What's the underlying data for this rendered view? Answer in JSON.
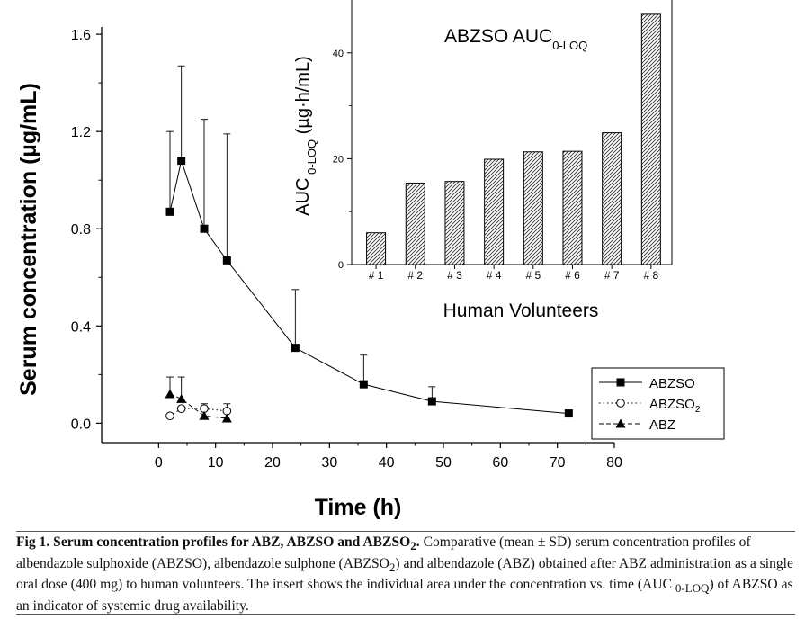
{
  "chart_data": [
    {
      "type": "line",
      "xlabel": "Time (h)",
      "ylabel": "Serum concentration (µg/mL)",
      "xlim": [
        -10,
        80
      ],
      "ylim": [
        -0.08,
        1.63
      ],
      "x_ticks": [
        0,
        10,
        20,
        30,
        40,
        50,
        60,
        70,
        80
      ],
      "y_ticks": [
        0.0,
        0.4,
        0.8,
        1.2,
        1.6
      ],
      "grid": false,
      "legend_position": "bottom-right",
      "series": [
        {
          "name": "ABZSO",
          "marker": "filled-square",
          "line": "solid",
          "points": [
            {
              "x": 2,
              "y": 0.87,
              "sd": 0.33
            },
            {
              "x": 4,
              "y": 1.08,
              "sd": 0.39
            },
            {
              "x": 8,
              "y": 0.8,
              "sd": 0.45
            },
            {
              "x": 12,
              "y": 0.67,
              "sd": 0.52
            },
            {
              "x": 24,
              "y": 0.31,
              "sd": 0.24
            },
            {
              "x": 36,
              "y": 0.16,
              "sd": 0.12
            },
            {
              "x": 48,
              "y": 0.09,
              "sd": 0.06
            },
            {
              "x": 72,
              "y": 0.04,
              "sd": 0.01
            }
          ]
        },
        {
          "name": "ABZSO",
          "name_sub": "2",
          "marker": "open-circle",
          "line": "dotted",
          "points": [
            {
              "x": 2,
              "y": 0.03,
              "sd": 0.0
            },
            {
              "x": 4,
              "y": 0.06,
              "sd": 0.0
            },
            {
              "x": 8,
              "y": 0.06,
              "sd": 0.02
            },
            {
              "x": 12,
              "y": 0.05,
              "sd": 0.03
            }
          ]
        },
        {
          "name": "ABZ",
          "marker": "filled-triangle",
          "line": "dashed",
          "points": [
            {
              "x": 2,
              "y": 0.12,
              "sd": 0.07
            },
            {
              "x": 4,
              "y": 0.1,
              "sd": 0.09
            },
            {
              "x": 8,
              "y": 0.03,
              "sd": 0.0
            },
            {
              "x": 12,
              "y": 0.02,
              "sd": 0.0
            }
          ]
        }
      ]
    },
    {
      "type": "bar",
      "title": "ABZSO AUC",
      "title_sub": "0-LOQ",
      "xlabel": "Human Volunteers",
      "ylabel": "AUC",
      "ylabel_sub": "0-LOQ",
      "ylabel_unit": "(µg·h/mL)",
      "categories": [
        "# 1",
        "# 2",
        "# 3",
        "# 4",
        "# 5",
        "# 6",
        "# 7",
        "# 8"
      ],
      "values": [
        6.0,
        15.4,
        15.7,
        19.9,
        21.3,
        21.4,
        24.9,
        47.3
      ],
      "ylim": [
        0,
        50
      ],
      "y_ticks": [
        0,
        20,
        40
      ],
      "pattern": "diagonal-hatch"
    }
  ],
  "caption": {
    "bold_a": "Fig 1. Serum concentration profiles for ABZ, ABZSO and ABZSO",
    "bold_sub": "2",
    "bold_end": ".",
    "t1": " Comparative (mean ± SD) serum concentration profiles of albendazole sulphoxide (ABZSO), albendazole sulphone (ABZSO",
    "sub1": "2",
    "t2": ") and albendazole (ABZ) obtained after ABZ administration as a single oral dose (400 mg) to human volunteers. The insert shows the individual area under the concentration vs. time (AUC ",
    "sub2": "0-LOQ",
    "t3": ") of ABZSO as an indicator of systemic drug availability."
  }
}
